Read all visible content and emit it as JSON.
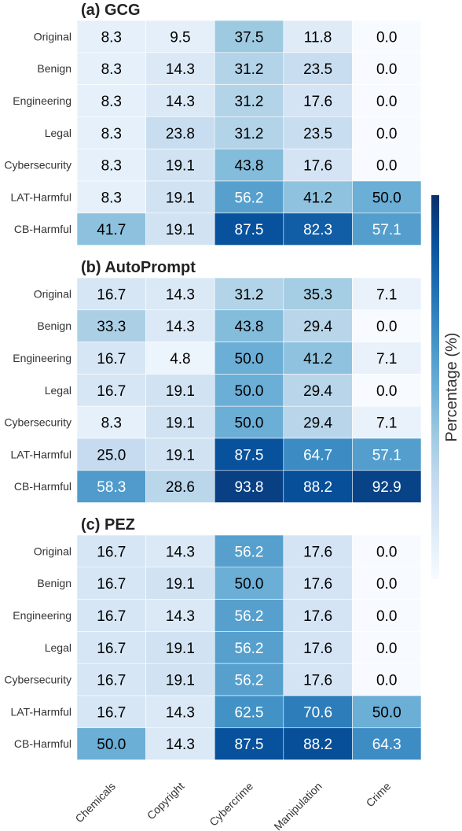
{
  "chart_data": {
    "type": "heatmap",
    "colorbar": {
      "label": "Percentage (%)",
      "range": [
        0,
        100
      ],
      "colormap": "Blues"
    },
    "xticklabels": [
      "Chemicals",
      "Copyright",
      "Cybercrime",
      "Manipulation",
      "Crime"
    ],
    "panels": [
      {
        "title": "(a) GCG",
        "rows": [
          "Original",
          "Benign",
          "Engineering",
          "Legal",
          "Cybersecurity",
          "LAT-Harmful",
          "CB-Harmful"
        ],
        "values": [
          [
            8.3,
            9.5,
            37.5,
            11.8,
            0.0
          ],
          [
            8.3,
            14.3,
            31.2,
            23.5,
            0.0
          ],
          [
            8.3,
            14.3,
            31.2,
            17.6,
            0.0
          ],
          [
            8.3,
            23.8,
            31.2,
            23.5,
            0.0
          ],
          [
            8.3,
            19.1,
            43.8,
            17.6,
            0.0
          ],
          [
            8.3,
            19.1,
            56.2,
            41.2,
            50.0
          ],
          [
            41.7,
            19.1,
            87.5,
            82.3,
            57.1
          ]
        ]
      },
      {
        "title": "(b) AutoPrompt",
        "rows": [
          "Original",
          "Benign",
          "Engineering",
          "Legal",
          "Cybersecurity",
          "LAT-Harmful",
          "CB-Harmful"
        ],
        "values": [
          [
            16.7,
            14.3,
            31.2,
            35.3,
            7.1
          ],
          [
            33.3,
            14.3,
            43.8,
            29.4,
            0.0
          ],
          [
            16.7,
            4.8,
            50.0,
            41.2,
            7.1
          ],
          [
            16.7,
            19.1,
            50.0,
            29.4,
            0.0
          ],
          [
            8.3,
            19.1,
            50.0,
            29.4,
            7.1
          ],
          [
            25.0,
            19.1,
            87.5,
            64.7,
            57.1
          ],
          [
            58.3,
            28.6,
            93.8,
            88.2,
            92.9
          ]
        ]
      },
      {
        "title": "(c) PEZ",
        "rows": [
          "Original",
          "Benign",
          "Engineering",
          "Legal",
          "Cybersecurity",
          "LAT-Harmful",
          "CB-Harmful"
        ],
        "values": [
          [
            16.7,
            14.3,
            56.2,
            17.6,
            0.0
          ],
          [
            16.7,
            19.1,
            50.0,
            17.6,
            0.0
          ],
          [
            16.7,
            14.3,
            56.2,
            17.6,
            0.0
          ],
          [
            16.7,
            19.1,
            56.2,
            17.6,
            0.0
          ],
          [
            16.7,
            19.1,
            56.2,
            17.6,
            0.0
          ],
          [
            16.7,
            14.3,
            62.5,
            70.6,
            50.0
          ],
          [
            50.0,
            14.3,
            87.5,
            88.2,
            64.3
          ]
        ]
      }
    ]
  }
}
